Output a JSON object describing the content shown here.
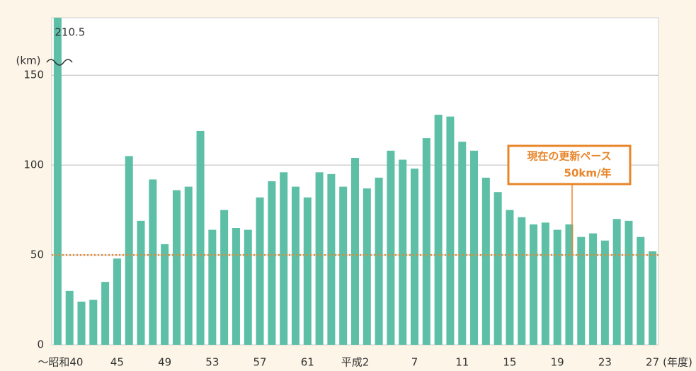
{
  "chart_data": {
    "type": "bar",
    "categories": [
      "〜昭和40",
      null,
      null,
      null,
      null,
      "45",
      null,
      null,
      null,
      "49",
      null,
      null,
      null,
      "53",
      null,
      null,
      null,
      "57",
      null,
      null,
      null,
      "61",
      null,
      null,
      null,
      "平成2",
      null,
      null,
      null,
      null,
      "7",
      null,
      null,
      null,
      "11",
      null,
      null,
      null,
      "15",
      null,
      null,
      null,
      "19",
      null,
      null,
      null,
      "23",
      null,
      null,
      null,
      "27"
    ],
    "values": [
      210.5,
      30,
      24,
      25,
      35,
      48,
      105,
      69,
      92,
      56,
      86,
      88,
      119,
      64,
      75,
      65,
      64,
      82,
      91,
      96,
      88,
      82,
      96,
      95,
      88,
      104,
      87,
      93,
      108,
      103,
      98,
      115,
      128,
      127,
      113,
      108,
      93,
      85,
      75,
      71,
      67,
      68,
      64,
      67,
      60,
      62,
      58,
      70,
      69,
      60,
      52
    ],
    "value_labels": [
      "210.5",
      null,
      null,
      null,
      null,
      null,
      null,
      null,
      null,
      null,
      null,
      null,
      null,
      null,
      null,
      null,
      null,
      null,
      null,
      null,
      null,
      null,
      null,
      null,
      null,
      null,
      null,
      null,
      null,
      null,
      null,
      null,
      null,
      null,
      null,
      null,
      null,
      null,
      null,
      null,
      null,
      null,
      null,
      null,
      null,
      null,
      null,
      null,
      null,
      null,
      null
    ],
    "color": "#5cbfa6",
    "y_axis_label": "(km)",
    "x_axis_label": "(年度)",
    "ylim": [
      0,
      182
    ],
    "yticks": [
      0,
      50,
      100,
      150
    ],
    "grid": true,
    "reference_line": {
      "value": 50,
      "color": "#e8862a",
      "label": [
        "現在の更新ペース",
        "50km/年"
      ]
    }
  }
}
